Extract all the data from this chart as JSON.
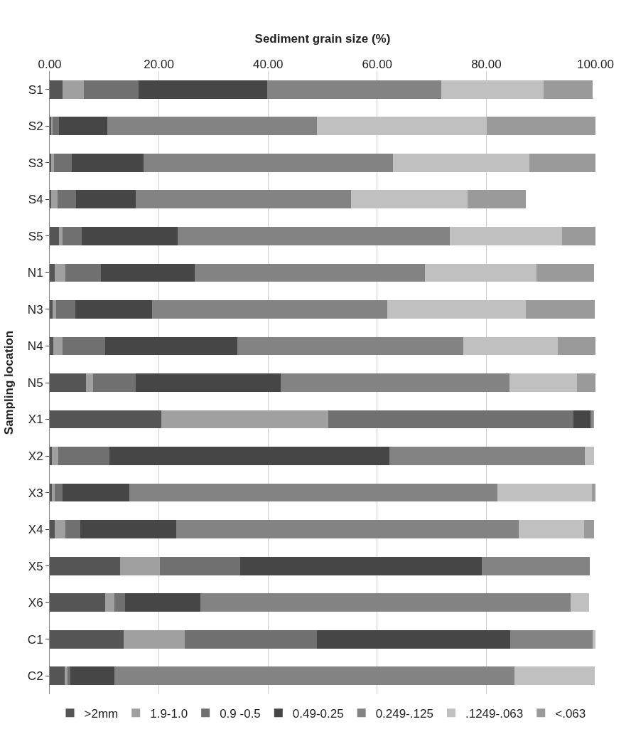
{
  "chart_data": {
    "type": "bar",
    "orientation": "horizontal",
    "stacked": true,
    "xlabel": "Sediment grain size (%)",
    "ylabel": "Sampling location",
    "categories": [
      "S1",
      "S2",
      "S3",
      "S4",
      "S5",
      "N1",
      "N3",
      "N4",
      "N5",
      "X1",
      "X2",
      "X3",
      "X4",
      "X5",
      "X6",
      "C1",
      "C2"
    ],
    "series": [
      {
        "name": ">2mm",
        "color": "#555555",
        "values": [
          2.3,
          0.3,
          0.3,
          0.3,
          1.7,
          0.9,
          0.5,
          0.7,
          6.6,
          20.4,
          0.4,
          0.4,
          0.9,
          12.9,
          10.1,
          13.6,
          2.7
        ]
      },
      {
        "name": "1.9-1.0",
        "color": "#a0a0a0",
        "values": [
          3.9,
          0.2,
          0.5,
          1.1,
          0.6,
          1.9,
          0.7,
          1.6,
          1.3,
          30.7,
          1.2,
          0.5,
          1.9,
          7.3,
          1.7,
          11.2,
          0.5
        ]
      },
      {
        "name": "0.9 -0.5",
        "color": "#707070",
        "values": [
          10.1,
          1.2,
          3.3,
          3.4,
          3.5,
          6.6,
          3.5,
          7.8,
          7.8,
          44.9,
          9.4,
          1.4,
          2.8,
          14.7,
          2.0,
          24.2,
          0.6
        ]
      },
      {
        "name": "0.49-0.25",
        "color": "#464646",
        "values": [
          23.5,
          8.9,
          13.1,
          11.0,
          17.7,
          17.1,
          14.0,
          24.3,
          26.6,
          3.1,
          51.3,
          12.3,
          17.6,
          44.3,
          13.8,
          35.4,
          8.0
        ]
      },
      {
        "name": "0.249-.125",
        "color": "#838383",
        "values": [
          31.9,
          38.4,
          45.7,
          39.4,
          49.8,
          42.3,
          43.2,
          41.4,
          41.9,
          0.4,
          35.8,
          67.4,
          62.8,
          19.8,
          67.8,
          15.1,
          73.4
        ]
      },
      {
        "name": ".1249-.063",
        "color": "#c0c0c0",
        "values": [
          18.8,
          31.1,
          25.0,
          21.4,
          20.6,
          20.4,
          25.3,
          17.3,
          12.4,
          null,
          1.6,
          17.3,
          11.9,
          null,
          3.4,
          0.5,
          14.7
        ]
      },
      {
        "name": "<.063",
        "color": "#9a9a9a",
        "values": [
          9.0,
          20.0,
          12.2,
          10.6,
          6.1,
          10.5,
          12.7,
          6.9,
          3.4,
          0.3,
          null,
          0.7,
          1.8,
          null,
          null,
          null,
          null
        ]
      }
    ],
    "xlim": [
      0,
      100
    ],
    "xticks": [
      {
        "value": 0,
        "label": "0.00"
      },
      {
        "value": 20,
        "label": "20.00"
      },
      {
        "value": 40,
        "label": "40.00"
      },
      {
        "value": 60,
        "label": "60.00"
      },
      {
        "value": 80,
        "label": "80.00"
      },
      {
        "value": 100,
        "label": "100.00"
      }
    ],
    "grid": "x",
    "legend": "bottom"
  }
}
